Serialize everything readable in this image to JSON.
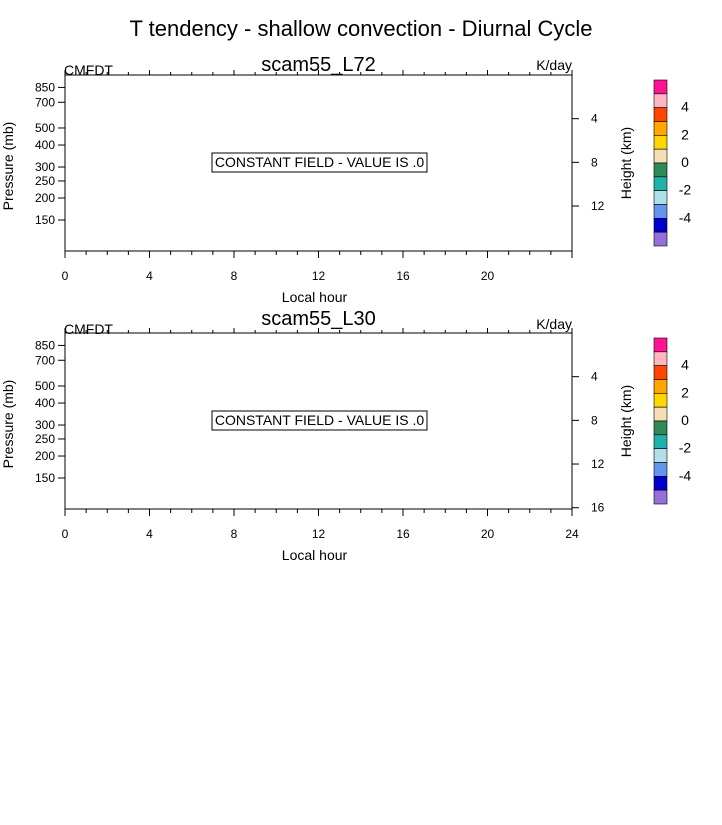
{
  "page_title": "T tendency - shallow convection - Diurnal Cycle",
  "chart_data": [
    {
      "type": "heatmap",
      "title": "scam55_L72",
      "left_label": "CMFDT",
      "right_label": "K/day",
      "xlabel": "Local hour",
      "ylabel": "Pressure (mb)",
      "y2label": "Height (km)",
      "x_ticks": [
        "0",
        "4",
        "8",
        "12",
        "16",
        "20"
      ],
      "y_ticks": [
        "150",
        "200",
        "250",
        "300",
        "400",
        "500",
        "700",
        "850"
      ],
      "y2_ticks": [
        "4",
        "8",
        "12"
      ],
      "xlim": [
        0,
        24
      ],
      "ylim": [
        1000,
        100
      ],
      "y_scale": "log",
      "annotation": "CONSTANT FIELD - VALUE IS .0",
      "colorbar": {
        "tick_labels": [
          "4",
          "2",
          "0",
          "-2",
          "-4"
        ],
        "colors": [
          "#ff1493",
          "#ffb6c1",
          "#ff4500",
          "#ffa500",
          "#ffd700",
          "#f5deb3",
          "#2e8b57",
          "#20b2aa",
          "#b0e0e6",
          "#6495ed",
          "#0000cd",
          "#9370db"
        ]
      }
    },
    {
      "type": "heatmap",
      "title": "scam55_L30",
      "left_label": "CMFDT",
      "right_label": "K/day",
      "xlabel": "Local hour",
      "ylabel": "Pressure (mb)",
      "y2label": "Height (km)",
      "x_ticks": [
        "0",
        "4",
        "8",
        "12",
        "16",
        "20",
        "24"
      ],
      "y_ticks": [
        "150",
        "200",
        "250",
        "300",
        "400",
        "500",
        "700",
        "850"
      ],
      "y2_ticks": [
        "4",
        "8",
        "12",
        "16"
      ],
      "xlim": [
        0,
        24
      ],
      "ylim": [
        1000,
        100
      ],
      "y_scale": "log",
      "annotation": "CONSTANT FIELD - VALUE IS .0",
      "colorbar": {
        "tick_labels": [
          "4",
          "2",
          "0",
          "-2",
          "-4"
        ],
        "colors": [
          "#ff1493",
          "#ffb6c1",
          "#ff4500",
          "#ffa500",
          "#ffd700",
          "#f5deb3",
          "#2e8b57",
          "#20b2aa",
          "#b0e0e6",
          "#6495ed",
          "#0000cd",
          "#9370db"
        ]
      }
    }
  ]
}
